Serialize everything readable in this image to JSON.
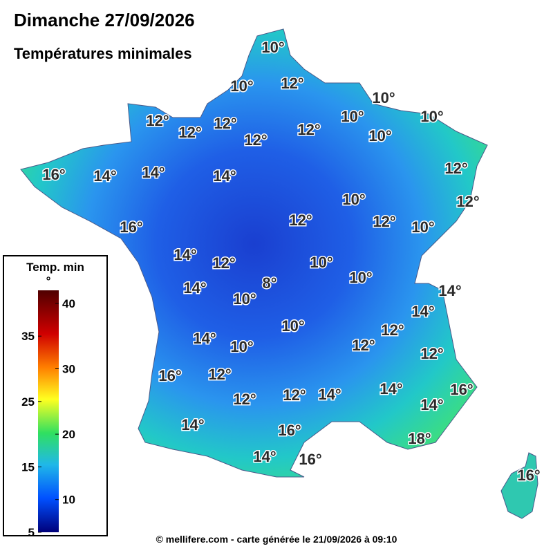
{
  "title": "Dimanche 27/09/2026",
  "subtitle": "Températures minimales",
  "footer": "© mellifere.com - carte générée le 21/09/2026 à 09:10",
  "legend": {
    "title": "Temp. min",
    "unit": "°",
    "ylim": [
      5,
      42
    ],
    "ticks": [
      5,
      10,
      15,
      20,
      25,
      30,
      35,
      40
    ]
  },
  "labels": [
    "10°",
    "10°",
    "12°",
    "10°",
    "12°",
    "12°",
    "12°",
    "10°",
    "10°",
    "12°",
    "12°",
    "10°",
    "16°",
    "14°",
    "14°",
    "14°",
    "12°",
    "10°",
    "12°",
    "16°",
    "12°",
    "12°",
    "10°",
    "14°",
    "12°",
    "10°",
    "8°",
    "10°",
    "14°",
    "14°",
    "10°",
    "14°",
    "10°",
    "12°",
    "14°",
    "10°",
    "12°",
    "12°",
    "16°",
    "12°",
    "16°",
    "12°",
    "12°",
    "14°",
    "14°",
    "14°",
    "14°",
    "16°",
    "18°",
    "14°",
    "16°",
    "16°"
  ]
}
